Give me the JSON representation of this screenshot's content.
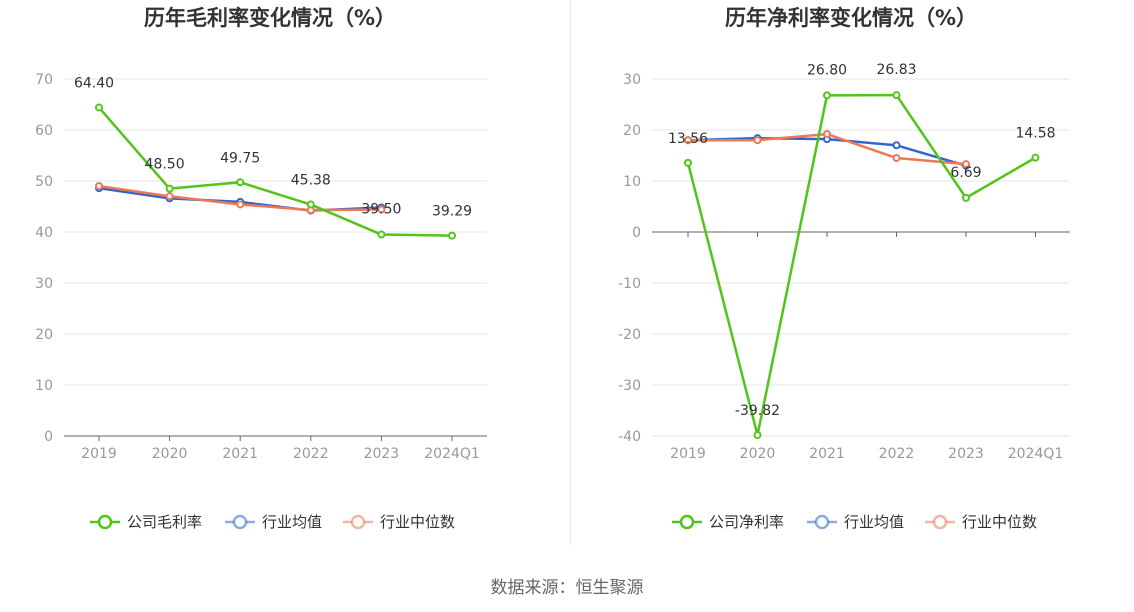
{
  "source_text": "数据来源：恒生聚源",
  "colors": {
    "company": "#52c41a",
    "industry_avg": "#3366cc",
    "industry_median": "#ee7755"
  },
  "chart_data": [
    {
      "type": "line",
      "title": "历年毛利率变化情况（%）",
      "categories": [
        "2019",
        "2020",
        "2021",
        "2022",
        "2023",
        "2024Q1"
      ],
      "ylim": [
        0,
        70
      ],
      "yticks": [
        0,
        10,
        20,
        30,
        40,
        50,
        60,
        70
      ],
      "grid": true,
      "legend_position": "bottom",
      "series": [
        {
          "name": "公司毛利率",
          "color": "#52c41a",
          "values": [
            64.4,
            48.5,
            49.75,
            45.38,
            39.5,
            39.29
          ],
          "labels": [
            "64.40",
            "48.50",
            "49.75",
            "45.38",
            "39.50",
            "39.29"
          ]
        },
        {
          "name": "行业均值",
          "color": "#3366cc",
          "values": [
            48.6,
            46.6,
            45.9,
            44.2,
            44.8,
            null
          ]
        },
        {
          "name": "行业中位数",
          "color": "#ee7755",
          "values": [
            49.0,
            47.0,
            45.4,
            44.3,
            44.4,
            null
          ]
        }
      ]
    },
    {
      "type": "line",
      "title": "历年净利率变化情况（%）",
      "categories": [
        "2019",
        "2020",
        "2021",
        "2022",
        "2023",
        "2024Q1"
      ],
      "ylim": [
        -40,
        30
      ],
      "yticks": [
        -40,
        -30,
        -20,
        -10,
        0,
        10,
        20,
        30
      ],
      "grid": true,
      "legend_position": "bottom",
      "series": [
        {
          "name": "公司净利率",
          "color": "#52c41a",
          "values": [
            13.56,
            -39.82,
            26.8,
            26.83,
            6.69,
            14.58
          ],
          "labels": [
            "13.56",
            "-39.82",
            "26.80",
            "26.83",
            "6.69",
            "14.58"
          ]
        },
        {
          "name": "行业均值",
          "color": "#3366cc",
          "values": [
            18.0,
            18.4,
            18.2,
            17.0,
            13.0,
            null
          ]
        },
        {
          "name": "行业中位数",
          "color": "#ee7755",
          "values": [
            18.0,
            18.0,
            19.2,
            14.5,
            13.3,
            null
          ]
        }
      ]
    }
  ]
}
